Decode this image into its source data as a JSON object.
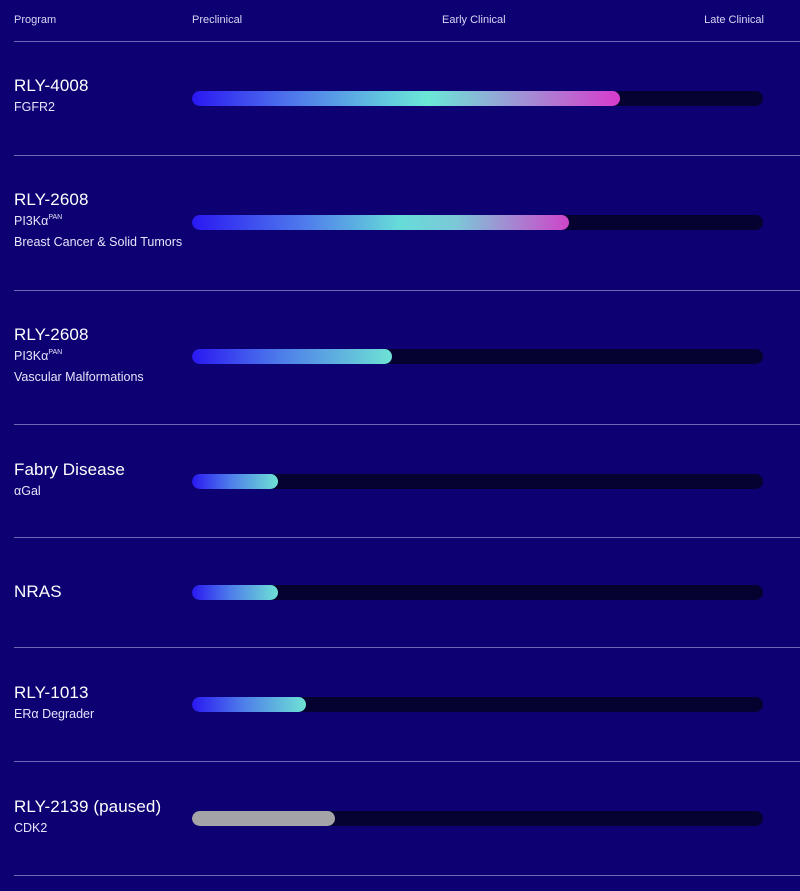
{
  "header": {
    "program": "Program",
    "preclinical": "Preclinical",
    "early_clinical": "Early Clinical",
    "late_clinical": "Late Clinical"
  },
  "programs": [
    {
      "name": "RLY-4008",
      "target": "FGFR2",
      "target_sup": "",
      "indication": "",
      "progress": 0.75,
      "status_color": "gradient"
    },
    {
      "name": "RLY-2608",
      "target": "PI3Kα",
      "target_sup": "PAN",
      "indication": "Breast Cancer & Solid Tumors",
      "progress": 0.66,
      "status_color": "gradient"
    },
    {
      "name": "RLY-2608",
      "target": "PI3Kα",
      "target_sup": "PAN",
      "indication": "Vascular Malformations",
      "progress": 0.35,
      "status_color": "gradient"
    },
    {
      "name": "Fabry Disease",
      "target": "αGal",
      "target_sup": "",
      "indication": "",
      "progress": 0.15,
      "status_color": "gradient"
    },
    {
      "name": "NRAS",
      "target": "",
      "target_sup": "",
      "indication": "",
      "progress": 0.15,
      "status_color": "gradient"
    },
    {
      "name": "RLY-1013",
      "target": "ERα Degrader",
      "target_sup": "",
      "indication": "",
      "progress": 0.2,
      "status_color": "gradient"
    },
    {
      "name": "RLY-2139 (paused)",
      "target": "CDK2",
      "target_sup": "",
      "indication": "",
      "progress": 0.25,
      "status_color": "#a3a3a8"
    }
  ],
  "colors": {
    "background": "#0c0072",
    "track": "#060230",
    "divider": "#6f68b3",
    "gradient_start": "#2a18f2",
    "gradient_mid": "#6ae8d6",
    "gradient_end": "#d83bcc",
    "paused": "#a3a3a8"
  }
}
